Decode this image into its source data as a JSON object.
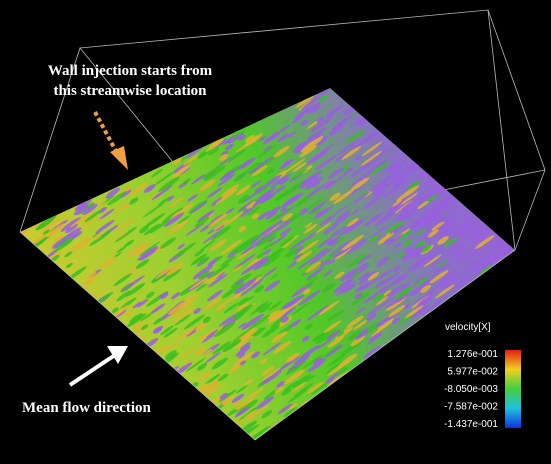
{
  "annotations": {
    "injection": [
      "Wall injection starts from",
      "this streamwise location"
    ],
    "flow": "Mean flow direction"
  },
  "colorbar": {
    "title": "velocity[X]",
    "ticks": [
      "1.276e-001",
      "5.977e-002",
      "-8.050e-003",
      "-7.587e-002",
      "-1.437e-001"
    ]
  }
}
